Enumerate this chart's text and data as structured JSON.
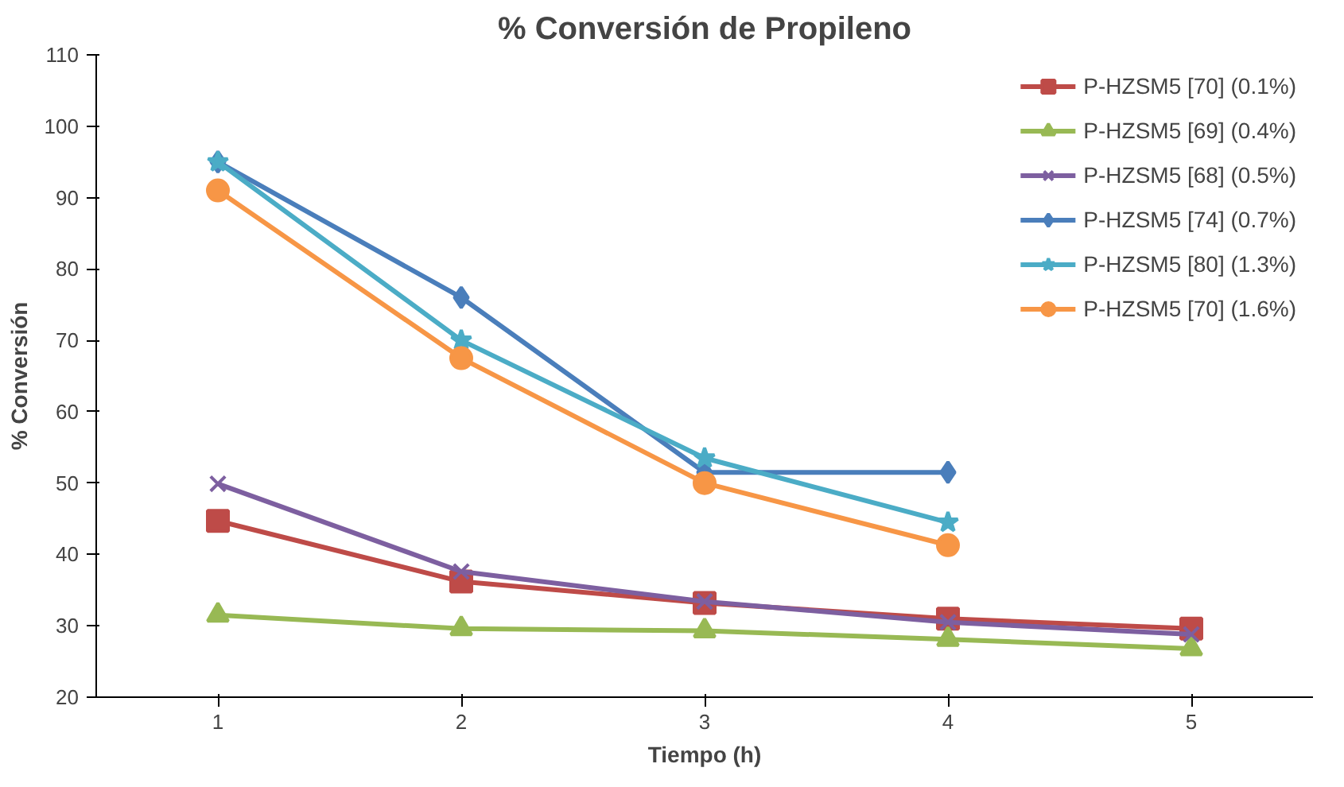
{
  "chart_data": {
    "type": "line",
    "title": "% Conversión de Propileno",
    "xlabel": "Tiempo (h)",
    "ylabel": "% Conversión",
    "categories": [
      "1",
      "2",
      "3",
      "4",
      "5"
    ],
    "ylim": [
      20,
      110
    ],
    "yticks": [
      20,
      30,
      40,
      50,
      60,
      70,
      80,
      90,
      100,
      110
    ],
    "grid": false,
    "legend": "top right",
    "series": [
      {
        "name": "P-HZSM5 [70] (0.1%)",
        "color": "#be4b48",
        "marker": "square",
        "values": [
          44.7,
          36.2,
          33.2,
          31.0,
          29.6
        ]
      },
      {
        "name": "P-HZSM5 [69] (0.4%)",
        "color": "#98b954",
        "marker": "triangle",
        "values": [
          31.5,
          29.6,
          29.3,
          28.1,
          26.8
        ]
      },
      {
        "name": "P-HZSM5 [68] (0.5%)",
        "color": "#7d5fa0",
        "marker": "cross",
        "values": [
          49.9,
          37.6,
          33.4,
          30.5,
          28.8
        ]
      },
      {
        "name": "P-HZSM5 [74] (0.7%)",
        "color": "#4a7ebb",
        "marker": "diamond",
        "values": [
          95,
          76,
          51.5,
          51.5,
          null
        ]
      },
      {
        "name": "P-HZSM5 [80] (1.3%)",
        "color": "#4bacc6",
        "marker": "star",
        "values": [
          95,
          70,
          53.5,
          44.5,
          null
        ]
      },
      {
        "name": "P-HZSM5 [70] (1.6%)",
        "color": "#f79646",
        "marker": "circle",
        "values": [
          91,
          67.5,
          50,
          41.3,
          null
        ]
      }
    ]
  }
}
